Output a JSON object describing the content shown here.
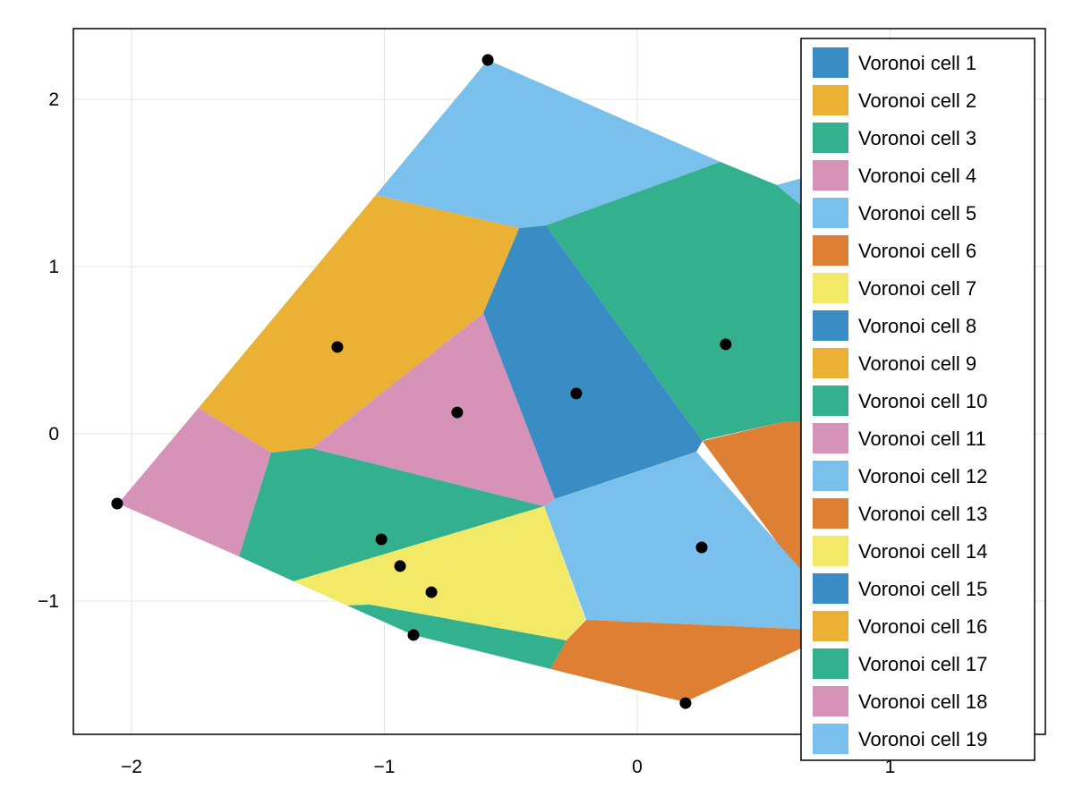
{
  "chart_data": {
    "type": "voronoi",
    "title": "",
    "xlabel": "",
    "ylabel": "",
    "xlim": [
      -2.25,
      1.6
    ],
    "ylim": [
      -1.8,
      2.42
    ],
    "grid": true,
    "xticks": [
      {
        "v": -2,
        "label": "−2"
      },
      {
        "v": -1,
        "label": "−1"
      },
      {
        "v": 0,
        "label": "0"
      },
      {
        "v": 1,
        "label": "1"
      }
    ],
    "yticks": [
      {
        "v": 2,
        "label": "2"
      },
      {
        "v": 1,
        "label": "1"
      },
      {
        "v": 0,
        "label": "0"
      },
      {
        "v": -1,
        "label": "−1"
      }
    ],
    "legend_position": "top-right",
    "palette": [
      "#3A8DC4",
      "#EBB134",
      "#33B18F",
      "#D693B7",
      "#79C1EC",
      "#DE7F33",
      "#F2E967"
    ],
    "cells": [
      {
        "label": "Voronoi cell 1",
        "polygon": [
          [
            -0.609,
            0.722
          ],
          [
            -0.467,
            1.23
          ],
          [
            -0.361,
            1.246
          ],
          [
            0.258,
            -0.043
          ],
          [
            0.234,
            -0.107
          ],
          [
            -0.326,
            -0.39
          ]
        ]
      },
      {
        "label": "Voronoi cell 2",
        "polygon": [
          [
            -1.735,
            0.155
          ],
          [
            -1.034,
            1.428
          ],
          [
            -0.467,
            1.23
          ],
          [
            -0.609,
            0.722
          ],
          [
            -1.288,
            -0.086
          ],
          [
            -1.448,
            -0.112
          ]
        ]
      },
      {
        "label": "Voronoi cell 3",
        "polygon": [
          [
            -1.575,
            -0.733
          ],
          [
            -1.448,
            -0.112
          ],
          [
            -1.288,
            -0.086
          ],
          [
            -0.368,
            -0.433
          ],
          [
            -1.359,
            -0.882
          ]
        ]
      },
      {
        "label": "Voronoi cell 4",
        "polygon": [
          [
            -1.288,
            -0.086
          ],
          [
            -0.609,
            0.722
          ],
          [
            -0.326,
            -0.39
          ],
          [
            -0.368,
            -0.433
          ]
        ]
      },
      {
        "label": "Voronoi cell 5",
        "polygon": [
          [
            -1.034,
            1.428
          ],
          [
            -0.591,
            2.235
          ],
          [
            0.329,
            1.626
          ],
          [
            -0.361,
            1.246
          ],
          [
            -0.467,
            1.23
          ]
        ]
      },
      {
        "label": "Voronoi cell 6",
        "polygon": [
          [
            0.258,
            -0.043
          ],
          [
            0.588,
            0.075
          ],
          [
            0.7,
            0.075
          ],
          [
            0.7,
            -0.9
          ],
          [
            0.648,
            -0.845
          ]
        ]
      },
      {
        "label": "Voronoi cell 7",
        "polygon": [
          [
            -1.359,
            -0.882
          ],
          [
            -0.368,
            -0.433
          ],
          [
            -1.058,
            -1.021
          ],
          [
            -1.147,
            -1.027
          ]
        ]
      },
      {
        "label": "Voronoi cell 8",
        "polygon": []
      },
      {
        "label": "Voronoi cell 9",
        "polygon": []
      },
      {
        "label": "Voronoi cell 10",
        "polygon": [
          [
            -0.361,
            1.246
          ],
          [
            0.329,
            1.626
          ],
          [
            0.552,
            1.487
          ],
          [
            0.7,
            1.3
          ],
          [
            0.7,
            0.075
          ],
          [
            0.588,
            0.075
          ],
          [
            0.276,
            -0.032
          ],
          [
            0.258,
            -0.043
          ]
        ]
      },
      {
        "label": "Voronoi cell 11",
        "polygon": [
          [
            -2.053,
            -0.417
          ],
          [
            -1.735,
            0.155
          ],
          [
            -1.448,
            -0.112
          ],
          [
            -1.575,
            -0.733
          ]
        ]
      },
      {
        "label": "Voronoi cell 12",
        "polygon": [
          [
            -0.368,
            -0.433
          ],
          [
            -0.326,
            -0.39
          ],
          [
            0.234,
            -0.107
          ],
          [
            0.7,
            -0.9
          ],
          [
            0.7,
            -1.171
          ],
          [
            -0.202,
            -1.112
          ]
        ]
      },
      {
        "label": "Voronoi cell 13",
        "polygon": [
          [
            -0.343,
            -1.406
          ],
          [
            -0.28,
            -1.235
          ],
          [
            -0.202,
            -1.112
          ],
          [
            0.7,
            -1.171
          ],
          [
            0.7,
            -1.246
          ],
          [
            0.188,
            -1.604
          ]
        ]
      },
      {
        "label": "Voronoi cell 14",
        "polygon": [
          [
            -1.058,
            -1.021
          ],
          [
            -0.368,
            -0.433
          ],
          [
            -0.205,
            -1.112
          ],
          [
            -0.28,
            -1.235
          ]
        ]
      },
      {
        "label": "Voronoi cell 15",
        "polygon": []
      },
      {
        "label": "Voronoi cell 16",
        "polygon": []
      },
      {
        "label": "Voronoi cell 17",
        "polygon": [
          [
            -1.147,
            -1.027
          ],
          [
            -1.058,
            -1.021
          ],
          [
            -0.28,
            -1.235
          ],
          [
            -0.343,
            -1.406
          ],
          [
            -0.885,
            -1.203
          ]
        ]
      },
      {
        "label": "Voronoi cell 18",
        "polygon": []
      },
      {
        "label": "Voronoi cell 19",
        "polygon": [
          [
            0.552,
            1.487
          ],
          [
            0.7,
            1.55
          ],
          [
            0.7,
            1.3
          ]
        ]
      }
    ],
    "points": [
      [
        -0.591,
        2.235
      ],
      [
        -1.186,
        0.519
      ],
      [
        -0.712,
        0.128
      ],
      [
        -0.241,
        0.241
      ],
      [
        0.35,
        0.535
      ],
      [
        -2.057,
        -0.417
      ],
      [
        -1.012,
        -0.631
      ],
      [
        -0.938,
        -0.791
      ],
      [
        -0.814,
        -0.947
      ],
      [
        -0.885,
        -1.203
      ],
      [
        0.255,
        -0.679
      ],
      [
        0.191,
        -1.61
      ]
    ]
  }
}
